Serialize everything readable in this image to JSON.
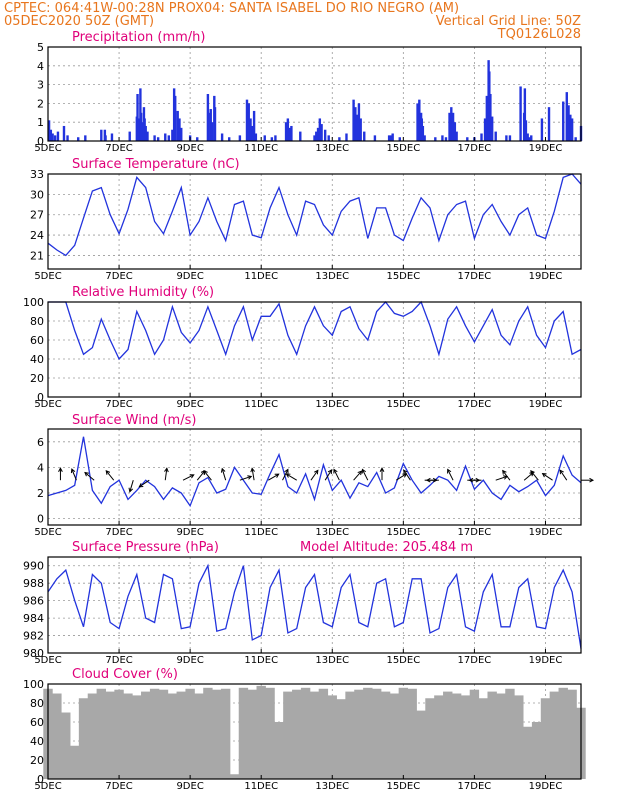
{
  "header": {
    "left_line1": "CPTEC:   064:41W-00:28N   PROX04: SANTA ISABEL DO RIO NEGRO (AM)",
    "left_line2": "05DEC2020 50Z (GMT)",
    "right_line2": "Vertical Grid Line: 50Z",
    "right_line3": "TQ0126L028"
  },
  "colors": {
    "header": "#e8761e",
    "title": "#e0007a",
    "series": "#2233dd",
    "cloud": "#a8a8a8",
    "wind_arrow": "#000000"
  },
  "x_axis": {
    "tick_labels": [
      "5DEC",
      "7DEC",
      "9DEC",
      "11DEC",
      "13DEC",
      "15DEC",
      "17DEC",
      "19DEC"
    ],
    "tick_days": [
      0,
      2,
      4,
      6,
      8,
      10,
      12,
      14
    ],
    "range_days": [
      0,
      15
    ]
  },
  "chart_data": [
    {
      "type": "bar",
      "title": "Precipitation (mm/h)",
      "ylim": [
        0,
        5
      ],
      "yticks": [
        0,
        1,
        2,
        3,
        4,
        5
      ],
      "x_days": [
        0.03,
        0.08,
        0.13,
        0.2,
        0.28,
        0.45,
        0.55,
        0.85,
        1.05,
        1.5,
        1.6,
        1.62,
        1.8,
        2.3,
        2.5,
        2.52,
        2.55,
        2.6,
        2.62,
        2.65,
        2.7,
        2.72,
        2.75,
        2.8,
        3.0,
        3.1,
        3.3,
        3.4,
        3.5,
        3.55,
        3.58,
        3.65,
        3.7,
        3.75,
        4.0,
        4.2,
        4.5,
        4.52,
        4.58,
        4.62,
        4.68,
        4.7,
        4.9,
        5.1,
        5.4,
        5.6,
        5.62,
        5.65,
        5.7,
        5.75,
        5.8,
        5.85,
        6.1,
        6.3,
        6.4,
        6.7,
        6.75,
        6.8,
        6.85,
        7.1,
        7.5,
        7.55,
        7.6,
        7.65,
        7.7,
        7.8,
        7.9,
        8.2,
        8.4,
        8.6,
        8.65,
        8.7,
        8.75,
        8.8,
        8.9,
        9.2,
        9.6,
        9.65,
        9.7,
        9.9,
        10.4,
        10.45,
        10.5,
        10.52,
        10.55,
        10.6,
        10.9,
        11.1,
        11.2,
        11.3,
        11.35,
        11.4,
        11.45,
        11.5,
        11.8,
        12.0,
        12.2,
        12.3,
        12.35,
        12.4,
        12.42,
        12.45,
        12.5,
        12.6,
        12.9,
        13.0,
        13.3,
        13.4,
        13.42,
        13.45,
        13.5,
        13.55,
        13.6,
        13.9,
        14.1,
        14.5,
        14.6,
        14.65,
        14.7,
        14.75,
        14.85,
        15.0
      ],
      "values": [
        1.1,
        0.6,
        0.4,
        0.3,
        0.5,
        0.8,
        0.3,
        0.2,
        0.3,
        0.6,
        0.6,
        0.3,
        0.4,
        0.5,
        1.3,
        2.5,
        1.2,
        2.8,
        1.5,
        1.0,
        1.8,
        1.2,
        0.8,
        0.5,
        0.3,
        0.2,
        0.4,
        0.3,
        0.6,
        2.8,
        2.4,
        1.6,
        1.2,
        0.7,
        0.3,
        0.2,
        2.5,
        1.5,
        1.7,
        1.0,
        2.4,
        1.8,
        0.4,
        0.2,
        0.3,
        2.2,
        1.5,
        2.0,
        1.2,
        0.8,
        1.6,
        0.4,
        0.3,
        0.2,
        0.3,
        1.0,
        1.2,
        0.7,
        0.8,
        0.5,
        0.3,
        0.5,
        0.7,
        1.2,
        0.9,
        0.6,
        0.3,
        0.2,
        0.4,
        2.2,
        1.8,
        1.4,
        2.0,
        1.2,
        0.5,
        0.3,
        0.3,
        0.3,
        0.4,
        0.2,
        2.0,
        2.2,
        1.5,
        1.2,
        0.8,
        0.3,
        0.2,
        0.3,
        0.2,
        1.5,
        1.8,
        1.5,
        1.0,
        0.5,
        0.2,
        0.2,
        0.4,
        1.2,
        2.4,
        4.3,
        3.7,
        2.5,
        1.3,
        0.5,
        0.3,
        0.3,
        2.9,
        1.5,
        2.8,
        1.1,
        0.4,
        0.2,
        0.3,
        1.2,
        1.8,
        2.1,
        2.6,
        1.9,
        1.4,
        1.2,
        0.2,
        0.8
      ]
    },
    {
      "type": "line",
      "title": "Surface Temperature (nC)",
      "ylim": [
        19,
        33
      ],
      "yticks": [
        21,
        24,
        27,
        30,
        33
      ],
      "x_days": [
        0,
        0.25,
        0.5,
        0.75,
        1.0,
        1.25,
        1.5,
        1.75,
        2.0,
        2.25,
        2.5,
        2.75,
        3.0,
        3.25,
        3.5,
        3.75,
        4.0,
        4.25,
        4.5,
        4.75,
        5.0,
        5.25,
        5.5,
        5.75,
        6.0,
        6.25,
        6.5,
        6.75,
        7.0,
        7.25,
        7.5,
        7.75,
        8.0,
        8.25,
        8.5,
        8.75,
        9.0,
        9.25,
        9.5,
        9.75,
        10.0,
        10.25,
        10.5,
        10.75,
        11.0,
        11.25,
        11.5,
        11.75,
        12.0,
        12.25,
        12.5,
        12.75,
        13.0,
        13.25,
        13.5,
        13.75,
        14.0,
        14.25,
        14.5,
        14.75,
        15.0
      ],
      "values": [
        22.8,
        21.8,
        21.0,
        22.5,
        26.5,
        30.5,
        31.0,
        27.0,
        24.2,
        27.8,
        32.5,
        31.0,
        26.0,
        24.2,
        27.5,
        31.0,
        24.0,
        26.0,
        29.5,
        26.0,
        23.2,
        28.5,
        29.0,
        24.0,
        23.6,
        28.0,
        31.0,
        27.0,
        24.0,
        29.0,
        28.5,
        25.5,
        24.0,
        27.5,
        29.0,
        29.5,
        23.5,
        28.0,
        28.0,
        24.0,
        23.2,
        26.5,
        29.5,
        28.0,
        23.2,
        27.0,
        28.5,
        29.0,
        23.5,
        27.0,
        28.5,
        26.0,
        24.0,
        27.0,
        28.0,
        24.0,
        23.5,
        27.5,
        32.5,
        33.0,
        31.5
      ]
    },
    {
      "type": "line",
      "title": "Relative Humidity (%)",
      "ylim": [
        0,
        100
      ],
      "yticks": [
        0,
        20,
        40,
        60,
        80,
        100
      ],
      "x_days": [
        0,
        0.25,
        0.5,
        0.75,
        1.0,
        1.25,
        1.5,
        1.75,
        2.0,
        2.25,
        2.5,
        2.75,
        3.0,
        3.25,
        3.5,
        3.75,
        4.0,
        4.25,
        4.5,
        4.75,
        5.0,
        5.25,
        5.5,
        5.75,
        6.0,
        6.25,
        6.5,
        6.75,
        7.0,
        7.25,
        7.5,
        7.75,
        8.0,
        8.25,
        8.5,
        8.75,
        9.0,
        9.25,
        9.5,
        9.75,
        10.0,
        10.25,
        10.5,
        10.75,
        11.0,
        11.25,
        11.5,
        11.75,
        12.0,
        12.25,
        12.5,
        12.75,
        13.0,
        13.25,
        13.5,
        13.75,
        14.0,
        14.25,
        14.5,
        14.75,
        15.0
      ],
      "values": [
        100,
        100,
        100,
        70,
        45,
        52,
        82,
        60,
        40,
        50,
        90,
        70,
        45,
        60,
        95,
        68,
        57,
        70,
        95,
        70,
        45,
        75,
        95,
        60,
        85,
        85,
        98,
        65,
        45,
        75,
        95,
        75,
        65,
        90,
        95,
        72,
        60,
        90,
        100,
        88,
        85,
        90,
        100,
        75,
        45,
        82,
        95,
        75,
        58,
        75,
        92,
        65,
        55,
        80,
        95,
        65,
        52,
        80,
        90,
        45,
        50
      ]
    },
    {
      "type": "line",
      "title": "Surface Wind (m/s)",
      "ylim": [
        -0.5,
        7
      ],
      "yticks": [
        0,
        2,
        4,
        6
      ],
      "x_days": [
        0,
        0.25,
        0.5,
        0.75,
        1.0,
        1.25,
        1.5,
        1.75,
        2.0,
        2.25,
        2.5,
        2.75,
        3.0,
        3.25,
        3.5,
        3.75,
        4.0,
        4.25,
        4.5,
        4.75,
        5.0,
        5.25,
        5.5,
        5.75,
        6.0,
        6.25,
        6.5,
        6.75,
        7.0,
        7.25,
        7.5,
        7.75,
        8.0,
        8.25,
        8.5,
        8.75,
        9.0,
        9.25,
        9.5,
        9.75,
        10.0,
        10.25,
        10.5,
        10.75,
        11.0,
        11.25,
        11.5,
        11.75,
        12.0,
        12.25,
        12.5,
        12.75,
        13.0,
        13.25,
        13.5,
        13.75,
        14.0,
        14.25,
        14.5,
        14.75,
        15.0
      ],
      "values": [
        1.8,
        2.0,
        2.2,
        2.6,
        6.4,
        2.2,
        1.2,
        2.5,
        3.0,
        1.5,
        2.2,
        3.0,
        2.5,
        1.5,
        2.4,
        2.0,
        1.0,
        2.8,
        3.2,
        2.0,
        2.3,
        4.0,
        3.0,
        2.0,
        1.9,
        3.5,
        5.0,
        2.5,
        2.0,
        3.5,
        1.5,
        4.2,
        2.2,
        3.0,
        1.6,
        2.8,
        2.5,
        3.6,
        2.0,
        2.4,
        4.3,
        3.0,
        2.0,
        2.6,
        3.3,
        3.0,
        2.2,
        4.1,
        2.3,
        3.0,
        2.0,
        1.5,
        2.6,
        2.1,
        2.5,
        3.0,
        1.8,
        2.6,
        4.9,
        3.4,
        2.8
      ],
      "arrow_days": [
        0.35,
        0.8,
        1.3,
        1.85,
        2.4,
        2.85,
        3.3,
        3.8,
        4.2,
        4.6,
        5.0,
        5.4,
        5.8,
        6.2,
        6.6,
        7.0,
        7.4,
        7.8,
        8.2,
        8.6,
        9.0,
        9.4,
        9.8,
        10.2,
        10.6,
        11.0,
        11.4,
        11.8,
        12.2,
        12.6,
        13.0,
        13.4,
        13.8,
        14.2,
        14.6,
        15.0
      ],
      "arrow_u": [
        0,
        -0.5,
        -1.2,
        -0.8,
        -0.3,
        -1.2,
        0.2,
        1,
        0.8,
        -0.8,
        -0.3,
        1.8,
        -0.2,
        1.2,
        0.5,
        -1,
        0.7,
        0.5,
        -0.5,
        0.7,
        -0.5,
        0,
        0.8,
        -0.8,
        1.5,
        -1.5,
        -0.5,
        0.3,
        -1.8,
        1.5,
        -0.6,
        1.2,
        -0.8,
        -1.2,
        -0.8,
        2.0
      ],
      "arrow_v": [
        1.2,
        1.2,
        1.0,
        1.0,
        -1.0,
        -0.8,
        1.5,
        0.5,
        1.0,
        1.0,
        1.0,
        0.6,
        1.2,
        0.7,
        1.0,
        0.6,
        1.0,
        0.8,
        1.0,
        0.8,
        1.0,
        1.5,
        0.5,
        1.2,
        0,
        0,
        1.0,
        0,
        0,
        0.5,
        0.8,
        1.0,
        1.0,
        0.8,
        1.2,
        0
      ]
    },
    {
      "type": "line",
      "title": "Surface Pressure (hPa)",
      "annotation": "Model Altitude: 205.484 m",
      "ylim": [
        980,
        991
      ],
      "yticks": [
        980,
        982,
        984,
        986,
        988,
        990
      ],
      "x_days": [
        0,
        0.25,
        0.5,
        0.75,
        1.0,
        1.25,
        1.5,
        1.75,
        2.0,
        2.25,
        2.5,
        2.75,
        3.0,
        3.25,
        3.5,
        3.75,
        4.0,
        4.25,
        4.5,
        4.75,
        5.0,
        5.25,
        5.5,
        5.75,
        6.0,
        6.25,
        6.5,
        6.75,
        7.0,
        7.25,
        7.5,
        7.75,
        8.0,
        8.25,
        8.5,
        8.75,
        9.0,
        9.25,
        9.5,
        9.75,
        10.0,
        10.25,
        10.5,
        10.75,
        11.0,
        11.25,
        11.5,
        11.75,
        12.0,
        12.25,
        12.5,
        12.75,
        13.0,
        13.25,
        13.5,
        13.75,
        14.0,
        14.25,
        14.5,
        14.75,
        15.0
      ],
      "values": [
        987,
        988.5,
        989.5,
        986,
        983,
        989,
        988,
        983.5,
        982.8,
        986.5,
        989,
        984,
        983.5,
        989,
        988.5,
        982.8,
        983,
        988,
        990,
        982.5,
        982.8,
        987,
        990,
        981.5,
        982,
        987.5,
        989.5,
        982.3,
        982.8,
        987.5,
        989,
        983.5,
        983,
        987.5,
        989,
        983.5,
        983,
        988,
        988.5,
        983,
        983.5,
        988.5,
        988.5,
        982.3,
        982.8,
        987.5,
        989,
        983,
        982.5,
        987,
        989,
        983,
        983,
        987.5,
        988.5,
        983,
        982.8,
        987.5,
        989.5,
        987,
        980.5
      ]
    },
    {
      "type": "bar",
      "title": "Cloud Cover (%)",
      "ylim": [
        0,
        100
      ],
      "yticks": [
        0,
        20,
        40,
        60,
        80,
        100
      ],
      "x_days": [
        0,
        0.25,
        0.5,
        0.75,
        1.0,
        1.25,
        1.5,
        1.75,
        2.0,
        2.25,
        2.5,
        2.75,
        3.0,
        3.25,
        3.5,
        3.75,
        4.0,
        4.25,
        4.5,
        4.75,
        5.0,
        5.25,
        5.5,
        5.75,
        6.0,
        6.25,
        6.5,
        6.75,
        7.0,
        7.25,
        7.5,
        7.75,
        8.0,
        8.25,
        8.5,
        8.75,
        9.0,
        9.25,
        9.5,
        9.75,
        10.0,
        10.25,
        10.5,
        10.75,
        11.0,
        11.25,
        11.5,
        11.75,
        12.0,
        12.25,
        12.5,
        12.75,
        13.0,
        13.25,
        13.5,
        13.75,
        14.0,
        14.25,
        14.5,
        14.75,
        15.0
      ],
      "values": [
        95,
        90,
        70,
        35,
        85,
        90,
        95,
        92,
        94,
        90,
        88,
        92,
        95,
        94,
        90,
        92,
        95,
        90,
        96,
        94,
        95,
        5,
        96,
        94,
        98,
        96,
        60,
        92,
        94,
        96,
        92,
        95,
        88,
        84,
        92,
        94,
        96,
        95,
        92,
        90,
        96,
        95,
        72,
        85,
        88,
        92,
        90,
        88,
        94,
        85,
        92,
        90,
        95,
        88,
        55,
        60,
        85,
        92,
        96,
        94,
        75
      ]
    }
  ]
}
